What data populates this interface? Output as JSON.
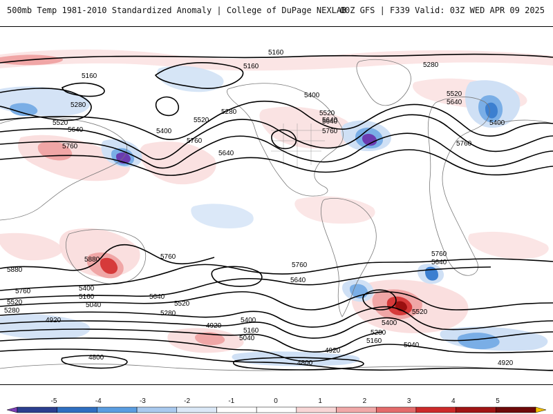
{
  "header": {
    "left_title": "500mb Temp 1981-2010 Standardized Anomaly | College of DuPage NEXLAB",
    "right_title": "00Z GFS | F339 Valid: 03Z WED APR 09 2025"
  },
  "contours": {
    "line_color": "#000000",
    "labels": [
      "5160",
      "5160",
      "5280",
      "5160",
      "5280",
      "5520",
      "5640",
      "5760",
      "5400",
      "5520",
      "5640",
      "5760",
      "5640",
      "5280",
      "5400",
      "5520",
      "5640",
      "5760",
      "5520",
      "5640",
      "5400",
      "5760",
      "5880",
      "5880",
      "5760",
      "5760",
      "5640",
      "5760",
      "5640",
      "5760",
      "5400",
      "5160",
      "5040",
      "5520",
      "5280",
      "4920",
      "5640",
      "5520",
      "5280",
      "4920",
      "5400",
      "5160",
      "5040",
      "5400",
      "5280",
      "5160",
      "5040",
      "4920",
      "5520",
      "4800",
      "4800",
      "4920"
    ]
  },
  "colorbar": {
    "ticks": [
      "-5",
      "-4",
      "-3",
      "-2",
      "-1",
      "0",
      "1",
      "2",
      "3",
      "4",
      "5"
    ],
    "colors": [
      "#7b3fb6",
      "#2b3f8f",
      "#2f6fc0",
      "#5a9de0",
      "#a9c9ee",
      "#dbe8f7",
      "#ffffff",
      "#ffffff",
      "#f8d6d6",
      "#f0a8a8",
      "#e36b6b",
      "#cc2a2a",
      "#a01515",
      "#6e0a0a",
      "#f5c200"
    ]
  },
  "colors": {
    "cold_light": "#cfe0f5",
    "cold_med": "#7aaee6",
    "cold_strong": "#3c7fd0",
    "cold_extreme": "#6b3bb0",
    "warm_light": "#f9dcdc",
    "warm_med": "#f0a6a6",
    "warm_strong": "#d63a3a",
    "warm_extreme": "#9a1010",
    "coastline": "#777777"
  }
}
